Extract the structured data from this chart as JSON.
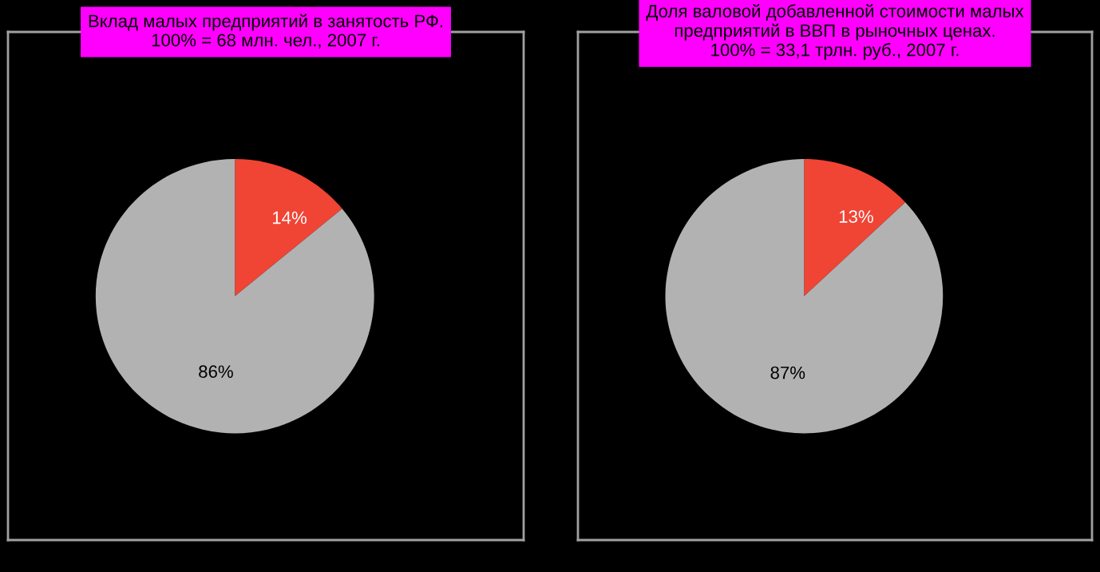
{
  "chart_data": [
    {
      "type": "pie",
      "title": "Вклад малых предприятий в занятость РФ.\n100% = 68 млн. чел., 2007 г.",
      "categories": [
        null,
        null
      ],
      "values": [
        14,
        86
      ],
      "colors": [
        "#f04434",
        "#b2b2b2"
      ],
      "data_labels": true,
      "value_labels": [
        "14%",
        "86%"
      ]
    },
    {
      "type": "pie",
      "title": "Доля валовой добавленной стоимости малых\nпредприятий в ВВП в рыночных ценах.\n100% = 33,1 трлн. руб., 2007 г.",
      "categories": [
        null,
        null
      ],
      "values": [
        13,
        87
      ],
      "colors": [
        "#f04434",
        "#b2b2b2"
      ],
      "data_labels": true,
      "value_labels": [
        "13%",
        "87%"
      ]
    }
  ]
}
